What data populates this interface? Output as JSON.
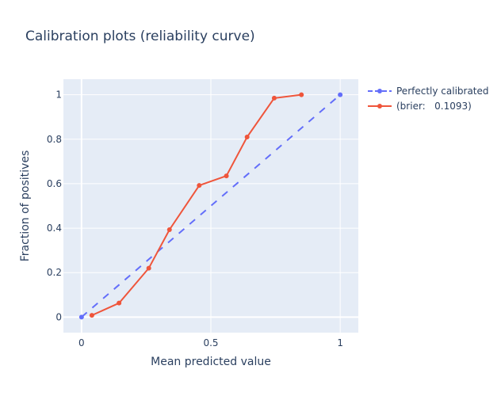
{
  "chart_data": {
    "type": "line",
    "title": "Calibration plots (reliability curve)",
    "xlabel": "Mean predicted value",
    "ylabel": "Fraction of positives",
    "xlim": [
      -0.07,
      1.07
    ],
    "ylim": [
      -0.07,
      1.07
    ],
    "xticks": [
      0,
      0.5,
      1
    ],
    "xtick_labels": [
      "0",
      "0.5",
      "1"
    ],
    "yticks": [
      0,
      0.2,
      0.4,
      0.6,
      0.8,
      1
    ],
    "ytick_labels": [
      "0",
      "0.2",
      "0.4",
      "0.6",
      "0.8",
      "1"
    ],
    "grid": true,
    "legend_position": "top-right outside",
    "series": [
      {
        "name": "Perfectly calibrated",
        "color": "#636efa",
        "dash": "dash",
        "x": [
          0,
          1
        ],
        "y": [
          0,
          1
        ]
      },
      {
        "name": "(brier:   0.1093)",
        "color": "#ef553b",
        "dash": "solid",
        "x": [
          0.04,
          0.145,
          0.26,
          0.34,
          0.455,
          0.56,
          0.64,
          0.745,
          0.85
        ],
        "y": [
          0.008,
          0.063,
          0.22,
          0.393,
          0.592,
          0.635,
          0.81,
          0.985,
          1.0
        ]
      }
    ]
  }
}
